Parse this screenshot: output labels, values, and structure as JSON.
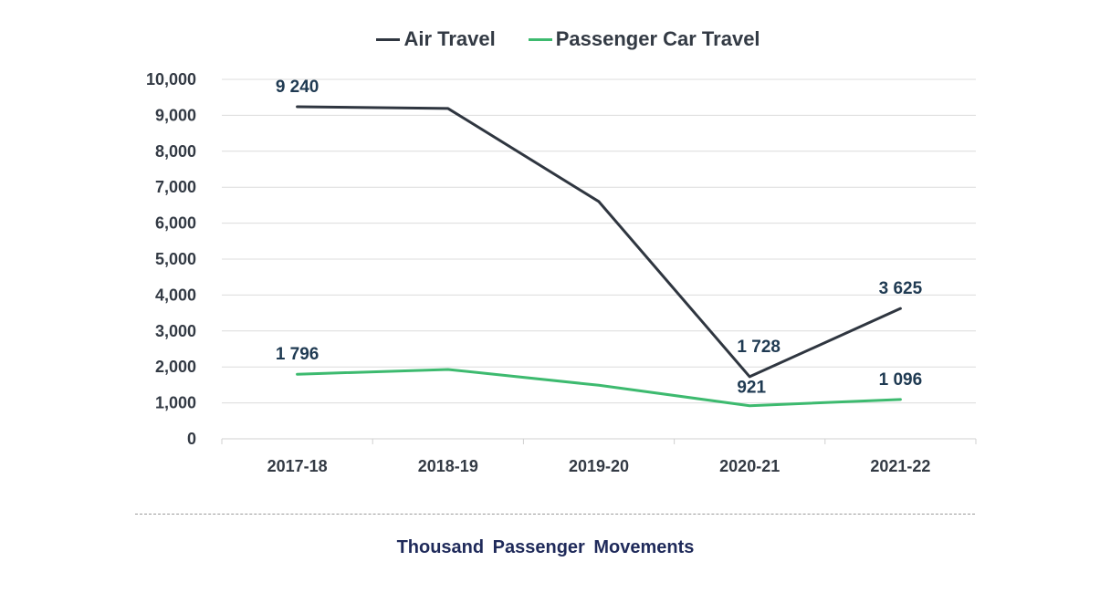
{
  "chart_data": {
    "type": "line",
    "categories": [
      "2017-18",
      "2018-19",
      "2019-20",
      "2020-21",
      "2021-22"
    ],
    "series": [
      {
        "name": "Air Travel",
        "color": "#2f3640",
        "values": [
          9240,
          9190,
          6600,
          1728,
          3625
        ],
        "data_labels": [
          "9 240",
          "",
          "",
          "1 728",
          "3 625"
        ]
      },
      {
        "name": "Passenger Car Travel",
        "color": "#3dba6f",
        "values": [
          1796,
          1930,
          1490,
          921,
          1096
        ],
        "data_labels": [
          "1 796",
          "",
          "",
          "921",
          "1 096"
        ]
      }
    ],
    "ylim": [
      0,
      10000
    ],
    "yticks": [
      "0",
      "1,000",
      "2,000",
      "3,000",
      "4,000",
      "5,000",
      "6,000",
      "7,000",
      "8,000",
      "9,000",
      "10,000"
    ],
    "grid": true,
    "legend_position": "top-center",
    "footer": "Thousand  Passenger  Movements"
  }
}
